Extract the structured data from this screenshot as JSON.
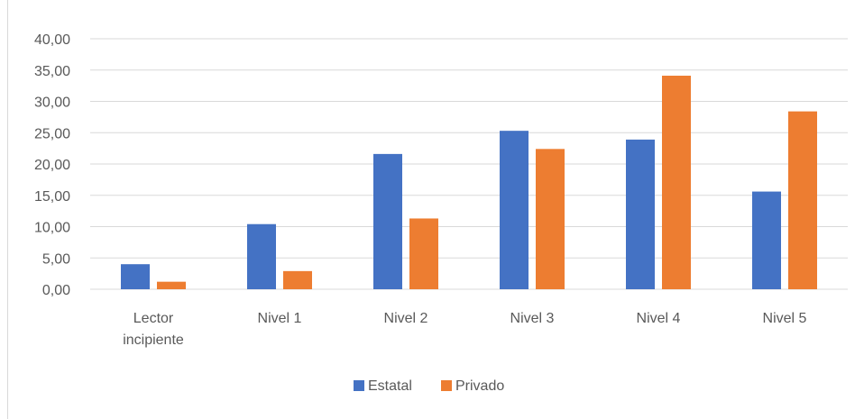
{
  "chart_data": {
    "type": "bar",
    "title": "",
    "xlabel": "",
    "ylabel": "",
    "categories": [
      [
        "Lector",
        "incipiente"
      ],
      [
        "Nivel 1"
      ],
      [
        "Nivel 2"
      ],
      [
        "Nivel 3"
      ],
      [
        "Nivel 4"
      ],
      [
        "Nivel 5"
      ]
    ],
    "series": [
      {
        "name": "Estatal",
        "color": "#4472C4",
        "values": [
          4.0,
          10.4,
          21.6,
          25.3,
          23.9,
          15.6
        ]
      },
      {
        "name": "Privado",
        "color": "#ED7D31",
        "values": [
          1.2,
          2.9,
          11.3,
          22.4,
          34.1,
          28.4
        ]
      }
    ],
    "ylim": [
      0,
      40
    ],
    "y_ticks": [
      "0,00",
      "5,00",
      "10,00",
      "15,00",
      "20,00",
      "25,00",
      "30,00",
      "35,00",
      "40,00"
    ],
    "y_tick_values": [
      0,
      5,
      10,
      15,
      20,
      25,
      30,
      35,
      40
    ],
    "grid": true,
    "legend_position": "bottom"
  }
}
